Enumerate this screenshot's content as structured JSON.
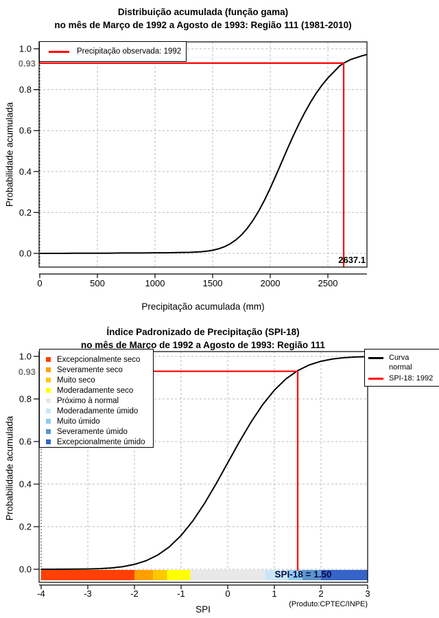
{
  "page": {
    "background": "#FFFFFF"
  },
  "colors": {
    "annotation_red": "#FF0000",
    "curve_black": "#000000",
    "grid_gray": "#BBBBBB",
    "highlight_label_gray": "#757575",
    "spi_value_navy": "#0A0A46"
  },
  "chart_data": [
    {
      "type": "line",
      "title": "Distribuição acumulada (função gama)",
      "subtitle": "no mês de Março de 1992 a Agosto de 1993: Região 111 (1981-2010)",
      "xlabel": "Precipitação acumulada (mm)",
      "ylabel": "Probabilidade acumulada",
      "xlim": [
        0,
        2840
      ],
      "ylim": [
        0.0,
        1.0
      ],
      "grid": true,
      "xticks": [
        "0",
        "500",
        "1000",
        "1500",
        "2000",
        "2500"
      ],
      "yticks": [
        "0.0",
        "0.2",
        "0.4",
        "0.6",
        "0.8",
        "1.0"
      ],
      "series": [
        {
          "name": "Distribuição acumulada (função gama)",
          "color": "#000000",
          "x": [
            0,
            100,
            200,
            300,
            400,
            500,
            600,
            700,
            800,
            900,
            1000,
            1100,
            1200,
            1300,
            1400,
            1450,
            1500,
            1550,
            1600,
            1650,
            1700,
            1750,
            1800,
            1850,
            1900,
            1950,
            2000,
            2050,
            2100,
            2150,
            2200,
            2250,
            2300,
            2350,
            2400,
            2450,
            2500,
            2550,
            2600,
            2637.1,
            2700,
            2750,
            2800,
            2840
          ],
          "y": [
            0,
            0,
            0,
            0.001,
            0.001,
            0.001,
            0.001,
            0.002,
            0.002,
            0.002,
            0.003,
            0.003,
            0.004,
            0.005,
            0.008,
            0.011,
            0.015,
            0.022,
            0.032,
            0.046,
            0.065,
            0.09,
            0.122,
            0.161,
            0.207,
            0.26,
            0.319,
            0.382,
            0.447,
            0.512,
            0.575,
            0.634,
            0.689,
            0.739,
            0.784,
            0.823,
            0.857,
            0.886,
            0.915,
            0.93,
            0.948,
            0.957,
            0.966,
            0.972
          ]
        }
      ],
      "legend": {
        "position": "top-left",
        "items": [
          {
            "label": "Precipitação observada: 1992",
            "color": "#FF0000",
            "marker": "line"
          }
        ]
      },
      "annotations": {
        "x": 2637.1,
        "y": 0.93,
        "x_label": "2637.1",
        "y_label": "0.93",
        "line_color": "#FF0000"
      }
    },
    {
      "type": "line",
      "title": "Índice Padronizado de Precipitação (SPI-18)",
      "subtitle": "no mês de Março de 1992 a Agosto de 1993: Região 111",
      "xlabel": "SPI",
      "ylabel": "Probabilidade acumulada",
      "xlim": [
        -4,
        3
      ],
      "ylim": [
        0.0,
        1.0
      ],
      "grid": true,
      "xticks": [
        "-4",
        "-3",
        "-2",
        "-1",
        "0",
        "1",
        "2",
        "3"
      ],
      "yticks": [
        "0.0",
        "0.2",
        "0.4",
        "0.6",
        "0.8",
        "1.0"
      ],
      "series": [
        {
          "name": "Curva normal",
          "color": "#000000",
          "x": [
            -4,
            -3.75,
            -3.5,
            -3.25,
            -3,
            -2.75,
            -2.5,
            -2.25,
            -2,
            -1.75,
            -1.5,
            -1.25,
            -1,
            -0.75,
            -0.5,
            -0.25,
            0,
            0.25,
            0.5,
            0.75,
            1,
            1.25,
            1.5,
            1.75,
            2,
            2.25,
            2.5,
            2.75,
            3
          ],
          "y": [
            0,
            0.0001,
            0.0002,
            0.0006,
            0.0013,
            0.003,
            0.0062,
            0.0122,
            0.0228,
            0.0401,
            0.0668,
            0.1056,
            0.1587,
            0.2266,
            0.3085,
            0.4013,
            0.5,
            0.5987,
            0.6915,
            0.7734,
            0.8413,
            0.8944,
            0.9332,
            0.9599,
            0.9772,
            0.9878,
            0.9938,
            0.997,
            0.9987
          ]
        }
      ],
      "legend_right": {
        "items": [
          {
            "lines": [
              "Curva",
              "normal"
            ],
            "color": "#000000"
          },
          {
            "lines": [
              "SPI-18: 1992"
            ],
            "color": "#FF0000"
          }
        ]
      },
      "categories_legend": {
        "position": "top-left",
        "items": [
          {
            "label": "Excepcionalmente seco",
            "color": "#FF4000"
          },
          {
            "label": "Severamente seco",
            "color": "#FFA000"
          },
          {
            "label": "Muito seco",
            "color": "#FFC800"
          },
          {
            "label": "Moderadamente seco",
            "color": "#FFFF00"
          },
          {
            "label": "Próximo à normal",
            "color": "#E9E9E9"
          },
          {
            "label": "Moderadamente úmido",
            "color": "#C9E8F7"
          },
          {
            "label": "Muito úmido",
            "color": "#8FCBEE"
          },
          {
            "label": "Severamente úmido",
            "color": "#5A96CE"
          },
          {
            "label": "Excepcionalmente úmido",
            "color": "#3565C8"
          }
        ]
      },
      "colorbar": {
        "segments": [
          {
            "from": -4.0,
            "to": -2.0,
            "color": "#FF4000",
            "label": "Excepcionalmente seco"
          },
          {
            "from": -2.0,
            "to": -1.6,
            "color": "#FFA000",
            "label": "Severamente seco"
          },
          {
            "from": -1.6,
            "to": -1.3,
            "color": "#FFC800",
            "label": "Muito seco"
          },
          {
            "from": -1.3,
            "to": -0.8,
            "color": "#FFFF00",
            "label": "Moderadamente seco"
          },
          {
            "from": -0.8,
            "to": 0.8,
            "color": "#E9E9E9",
            "label": "Próximo à normal"
          },
          {
            "from": 0.8,
            "to": 1.3,
            "color": "#C9E8F7",
            "label": "Moderadamente úmido"
          },
          {
            "from": 1.3,
            "to": 1.6,
            "color": "#8FCBEE",
            "label": "Muito úmido"
          },
          {
            "from": 1.6,
            "to": 2.0,
            "color": "#5A96CE",
            "label": "Severamente úmido"
          },
          {
            "from": 2.0,
            "to": 3.0,
            "color": "#3565C8",
            "label": "Excepcionalmente úmido"
          }
        ]
      },
      "annotations": {
        "x": 1.5,
        "y": 0.93,
        "x_label": "SPI-18 = 1.50",
        "y_label": "0.93",
        "line_color": "#FF0000"
      },
      "footer": "(Produto:CPTEC/INPE)"
    }
  ]
}
